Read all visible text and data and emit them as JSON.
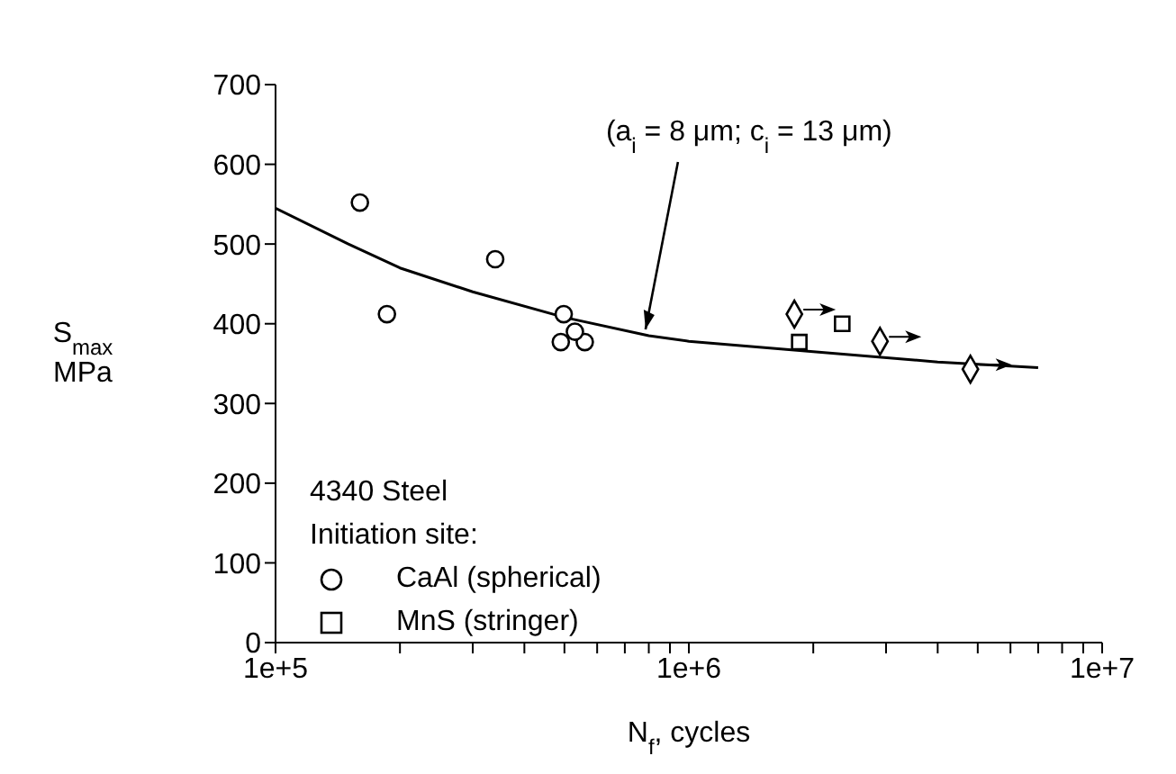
{
  "chart_data": {
    "type": "scatter",
    "xlabel": "N$_{f}$, cycles",
    "ylabel": "S$_{max}$\nMPa",
    "legend_title": "Initiation site:",
    "legend": "bottom left",
    "log": "x",
    "xlim": [
      100000,
      10000000
    ],
    "xticks": [
      {
        "value": 100000,
        "label": "1e+5"
      },
      {
        "value": 200000,
        "label": null
      },
      {
        "value": 300000,
        "label": null
      },
      {
        "value": 400000,
        "label": null
      },
      {
        "value": 500000,
        "label": null
      },
      {
        "value": 600000,
        "label": null
      },
      {
        "value": 700000,
        "label": null
      },
      {
        "value": 800000,
        "label": null
      },
      {
        "value": 900000,
        "label": null
      },
      {
        "value": 1000000,
        "label": "1e+6"
      },
      {
        "value": 2000000,
        "label": null
      },
      {
        "value": 3000000,
        "label": null
      },
      {
        "value": 4000000,
        "label": null
      },
      {
        "value": 5000000,
        "label": null
      },
      {
        "value": 6000000,
        "label": null
      },
      {
        "value": 7000000,
        "label": null
      },
      {
        "value": 8000000,
        "label": null
      },
      {
        "value": 9000000,
        "label": null
      },
      {
        "value": 10000000,
        "label": "1e+7"
      }
    ],
    "ylim": [
      0,
      700
    ],
    "yticks": [
      0,
      100,
      200,
      300,
      400,
      500,
      600,
      700
    ],
    "annotations": [
      "4340 Steel",
      {
        "text": "(a$_{i}$ = 8 μm; c$_{i}$ = 13 μm)",
        "x": 770000,
        "y": 384
      }
    ],
    "series": [
      {
        "type": "line",
        "color": "#000000",
        "marker": "none",
        "line_style": "solid",
        "x": [
          100000,
          150000,
          200000,
          300000,
          500000,
          800000,
          1000000,
          2000000,
          4000000,
          7000000
        ],
        "values": [
          545,
          500,
          470,
          440,
          408,
          385,
          378,
          365,
          352,
          345
        ]
      },
      {
        "name": "CaAl (spherical)",
        "color": "#000000",
        "marker": "circle",
        "x": [
          160000,
          186000,
          340000,
          498000,
          490000,
          560000,
          530000
        ],
        "values": [
          552,
          412,
          481,
          412,
          377,
          377,
          390
        ]
      },
      {
        "name": "MnS (stringer)",
        "color": "#000000",
        "marker": "square",
        "x": [
          1850000,
          2350000
        ],
        "values": [
          377,
          400
        ]
      },
      {
        "color": "#000000",
        "marker": "diamond",
        "x": [
          1800000,
          2900000,
          4800000
        ],
        "values": [
          412,
          378,
          343
        ]
      }
    ]
  }
}
